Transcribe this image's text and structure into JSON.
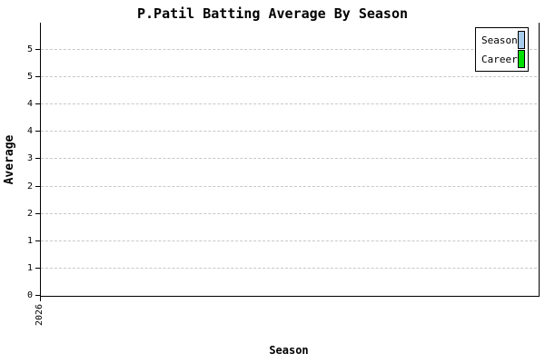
{
  "title": "P.Patil Batting Average By Season",
  "axes": {
    "y_label": "Average",
    "x_label": "Season",
    "y_tick_labels_top_to_bottom": [
      "5",
      "5",
      "4",
      "4",
      "3",
      "2",
      "2",
      "1",
      "1",
      "0"
    ],
    "x_tick_labels": [
      "2026"
    ]
  },
  "legend": {
    "items": [
      {
        "label": "Season",
        "color": "#a8ccec"
      },
      {
        "label": "Career",
        "color": "#00e000"
      }
    ]
  },
  "colors": {
    "background": "#ffffff",
    "axis": "#000000",
    "gridline": "#c8c8c8",
    "season_series": "#a8ccec",
    "career_series": "#00e000"
  },
  "chart_data": {
    "type": "bar",
    "title": "P.Patil Batting Average By Season",
    "xlabel": "Season",
    "ylabel": "Average",
    "categories": [
      "2026"
    ],
    "series": [
      {
        "name": "Season",
        "color": "#a8ccec",
        "values": []
      },
      {
        "name": "Career",
        "color": "#00e000",
        "values": []
      }
    ],
    "ylim": [
      0,
      5.4
    ],
    "y_tick_step": 0.6,
    "y_tick_labels_displayed_top_to_bottom": [
      "5",
      "5",
      "4",
      "4",
      "3",
      "2",
      "2",
      "1",
      "1",
      "0"
    ],
    "grid": "horizontal-dashed",
    "legend_position": "top-right"
  }
}
